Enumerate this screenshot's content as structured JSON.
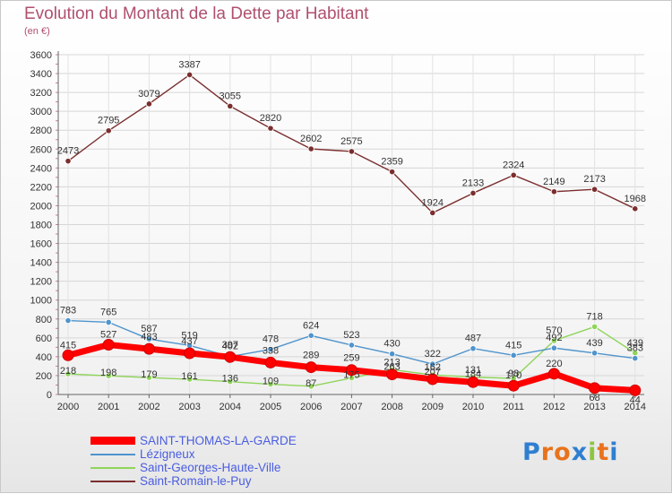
{
  "chart_data": {
    "type": "line",
    "title": "Evolution du Montant de la Dette par Habitant",
    "unit_label": "(en €)",
    "categories": [
      "2000",
      "2001",
      "2002",
      "2003",
      "2004",
      "2005",
      "2006",
      "2007",
      "2008",
      "2009",
      "2010",
      "2011",
      "2012",
      "2013",
      "2014"
    ],
    "y_ticks": [
      0,
      200,
      400,
      600,
      800,
      1000,
      1200,
      1400,
      1600,
      1800,
      2000,
      2200,
      2400,
      2600,
      2800,
      3000,
      3200,
      3400,
      3600
    ],
    "ylim": [
      0,
      3600
    ],
    "series": [
      {
        "name": "SAINT-THOMAS-LA-GARDE",
        "color": "#ff0000",
        "values": [
          415,
          527,
          483,
          437,
          397,
          338,
          289,
          259,
          213,
          162,
          131,
          93,
          220,
          68,
          44
        ]
      },
      {
        "name": "Lézigneux",
        "color": "#4f94cd",
        "values": [
          783,
          765,
          587,
          519,
          402,
          478,
          624,
          523,
          430,
          322,
          487,
          415,
          492,
          439,
          383
        ]
      },
      {
        "name": "Saint-Georges-Haute-Ville",
        "color": "#8fd45a",
        "values": [
          218,
          198,
          179,
          161,
          136,
          109,
          87,
          175,
          263,
          207,
          184,
          170,
          570,
          718,
          439
        ]
      },
      {
        "name": "Saint-Romain-le-Puy",
        "color": "#7b2e2e",
        "values": [
          2473,
          2795,
          3079,
          3387,
          3055,
          2820,
          2602,
          2575,
          2359,
          1924,
          2133,
          2324,
          2149,
          2173,
          1968
        ]
      }
    ]
  },
  "logo": {
    "letters": [
      "P",
      "r",
      "o",
      "x",
      "i",
      "t",
      "i"
    ],
    "colors": [
      "#2f7fd0",
      "#e8731c",
      "#e8731c",
      "#2f7fd0",
      "#8cc63f",
      "#e8731c",
      "#2f7fd0"
    ]
  }
}
